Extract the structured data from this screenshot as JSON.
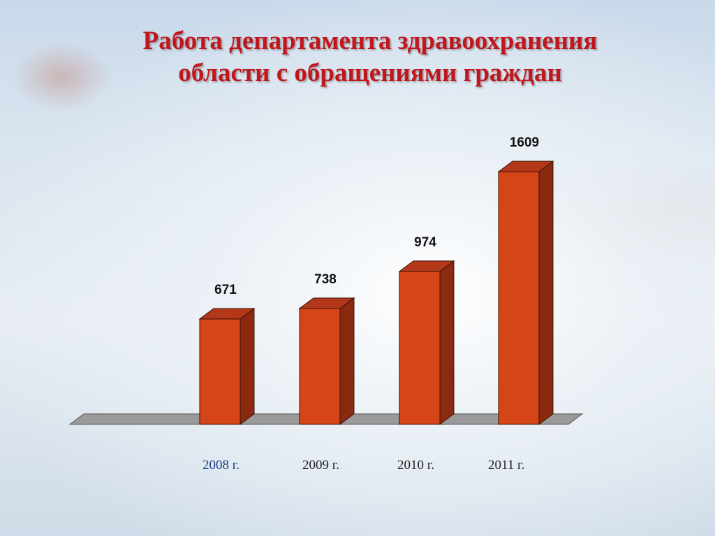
{
  "slide": {
    "title_line1": "Работа департамента здравоохранения",
    "title_line2": "области с обращениями граждан"
  },
  "colors": {
    "title": "#c0171e",
    "bar_front": "#d64518",
    "bar_side": "#8b2a10",
    "bar_top": "#b3381a",
    "floor": "#9a9a9a",
    "first_category_label": "#1f3f8a"
  },
  "chart_data": {
    "type": "bar",
    "categories": [
      "2008 г.",
      "2009 г.",
      "2010 г.",
      "2011 г."
    ],
    "values": [
      671,
      738,
      974,
      1609
    ],
    "ylim": [
      0,
      1609
    ],
    "grid": false,
    "legend": "none",
    "style": "3d-columns"
  }
}
